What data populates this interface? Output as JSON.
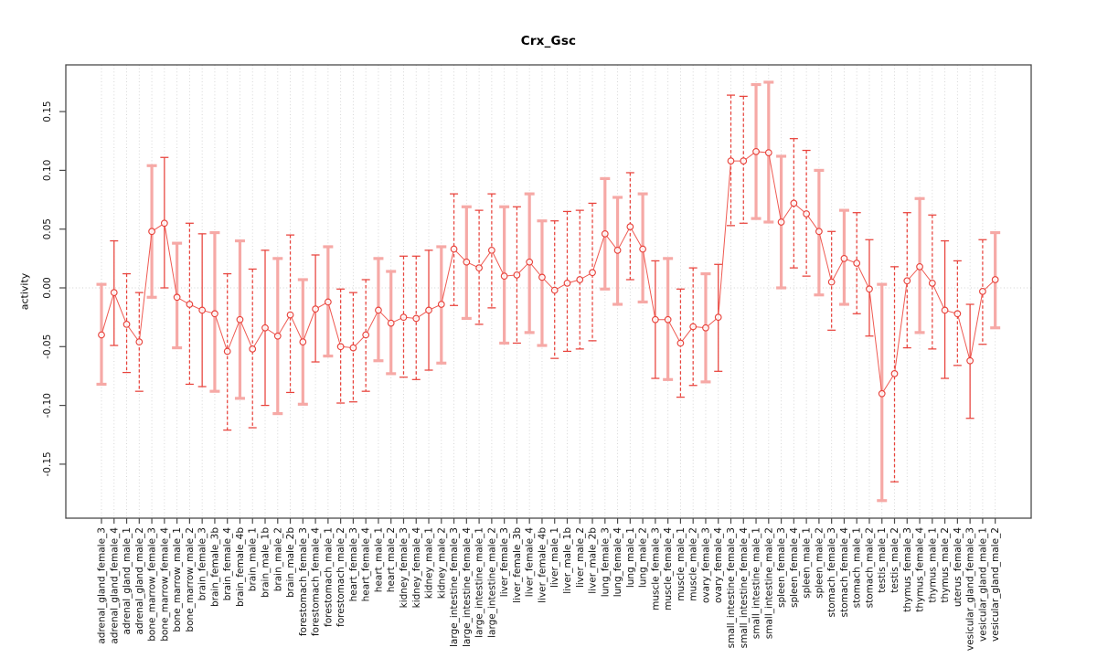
{
  "chart_data": {
    "type": "line",
    "subtype": "points-with-error-bars",
    "title": "Crx_Gsc",
    "xlabel": "",
    "ylabel": "activity",
    "ylim": [
      -0.196,
      0.19
    ],
    "yticks": [
      -0.15,
      -0.1,
      -0.05,
      0.0,
      0.05,
      0.1,
      0.15
    ],
    "ytick_labels": [
      "-0.15",
      "-0.10",
      "-0.05",
      "0.00",
      "0.05",
      "0.10",
      "0.15"
    ],
    "grid": "vertical dotted gridline at every category; dotted horizontal line at y=0; no legend",
    "legend_position": "none",
    "categories": [
      "adrenal_gland_female_3",
      "adrenal_gland_female_4",
      "adrenal_gland_male_1",
      "adrenal_gland_male_2",
      "bone_marrow_female_3",
      "bone_marrow_female_4",
      "bone_marrow_male_1",
      "bone_marrow_male_2",
      "brain_female_3",
      "brain_female_3b",
      "brain_female_4",
      "brain_female_4b",
      "brain_male_1",
      "brain_male_1b",
      "brain_male_2",
      "brain_male_2b",
      "forestomach_female_3",
      "forestomach_female_4",
      "forestomach_male_1",
      "forestomach_male_2",
      "heart_female_3",
      "heart_female_4",
      "heart_male_1",
      "heart_male_2",
      "kidney_female_3",
      "kidney_female_4",
      "kidney_male_1",
      "kidney_male_2",
      "large_intestine_female_3",
      "large_intestine_female_4",
      "large_intestine_male_1",
      "large_intestine_male_2",
      "liver_female_3",
      "liver_female_3b",
      "liver_female_4",
      "liver_female_4b",
      "liver_male_1",
      "liver_male_1b",
      "liver_male_2",
      "liver_male_2b",
      "lung_female_3",
      "lung_female_4",
      "lung_male_1",
      "lung_male_2",
      "muscle_female_3",
      "muscle_female_4",
      "muscle_male_1",
      "muscle_male_2",
      "ovary_female_3",
      "ovary_female_4",
      "small_intestine_female_3",
      "small_intestine_female_4",
      "small_intestine_male_1",
      "small_intestine_male_2",
      "spleen_female_3",
      "spleen_female_4",
      "spleen_male_1",
      "spleen_male_2",
      "stomach_female_3",
      "stomach_female_4",
      "stomach_male_1",
      "stomach_male_2",
      "testis_male_1",
      "testis_male_2",
      "thymus_female_3",
      "thymus_female_4",
      "thymus_male_1",
      "thymus_male_2",
      "uterus_female_4",
      "vesicular_gland_female_3",
      "vesicular_gland_male_1",
      "vesicular_gland_male_2"
    ],
    "series": [
      {
        "name": "activity",
        "values": [
          -0.04,
          -0.004,
          -0.031,
          -0.046,
          0.048,
          0.055,
          -0.008,
          -0.014,
          -0.019,
          -0.022,
          -0.054,
          -0.027,
          -0.052,
          -0.034,
          -0.041,
          -0.023,
          -0.046,
          -0.018,
          -0.012,
          -0.05,
          -0.051,
          -0.04,
          -0.019,
          -0.03,
          -0.025,
          -0.026,
          -0.019,
          -0.014,
          0.033,
          0.022,
          0.017,
          0.032,
          0.01,
          0.011,
          0.022,
          0.009,
          -0.002,
          0.004,
          0.007,
          0.013,
          0.046,
          0.032,
          0.052,
          0.033,
          -0.027,
          -0.027,
          -0.047,
          -0.033,
          -0.034,
          -0.025,
          0.108,
          0.108,
          0.116,
          0.115,
          0.056,
          0.072,
          0.063,
          0.048,
          0.005,
          0.025,
          0.021,
          -0.001,
          -0.09,
          -0.073,
          0.006,
          0.018,
          0.004,
          -0.019,
          -0.022,
          -0.062,
          -0.003,
          0.007
        ],
        "error_low": [
          -0.082,
          -0.049,
          -0.072,
          -0.088,
          -0.008,
          0.0,
          -0.051,
          -0.082,
          -0.084,
          -0.088,
          -0.121,
          -0.094,
          -0.119,
          -0.1,
          -0.107,
          -0.089,
          -0.099,
          -0.063,
          -0.058,
          -0.098,
          -0.097,
          -0.088,
          -0.062,
          -0.073,
          -0.076,
          -0.078,
          -0.07,
          -0.064,
          -0.015,
          -0.026,
          -0.031,
          -0.017,
          -0.047,
          -0.047,
          -0.038,
          -0.049,
          -0.06,
          -0.054,
          -0.052,
          -0.045,
          -0.001,
          -0.014,
          0.007,
          -0.012,
          -0.077,
          -0.078,
          -0.093,
          -0.083,
          -0.08,
          -0.071,
          0.053,
          0.055,
          0.059,
          0.056,
          0.0,
          0.017,
          0.01,
          -0.006,
          -0.036,
          -0.014,
          -0.022,
          -0.041,
          -0.181,
          -0.165,
          -0.051,
          -0.038,
          -0.052,
          -0.077,
          -0.066,
          -0.111,
          -0.048,
          -0.034
        ],
        "error_high": [
          0.003,
          0.04,
          0.012,
          -0.004,
          0.104,
          0.111,
          0.038,
          0.055,
          0.046,
          0.047,
          0.012,
          0.04,
          0.016,
          0.032,
          0.025,
          0.045,
          0.007,
          0.028,
          0.035,
          -0.001,
          -0.004,
          0.007,
          0.025,
          0.014,
          0.027,
          0.027,
          0.032,
          0.035,
          0.08,
          0.069,
          0.066,
          0.08,
          0.069,
          0.069,
          0.08,
          0.057,
          0.057,
          0.065,
          0.066,
          0.072,
          0.093,
          0.077,
          0.098,
          0.08,
          0.023,
          0.025,
          -0.001,
          0.017,
          0.012,
          0.02,
          0.164,
          0.163,
          0.173,
          0.175,
          0.112,
          0.127,
          0.117,
          0.1,
          0.048,
          0.066,
          0.064,
          0.041,
          0.003,
          0.018,
          0.064,
          0.076,
          0.062,
          0.04,
          0.023,
          -0.014,
          0.041,
          0.047
        ],
        "bar_styles": [
          "pink",
          "red",
          "red_dash",
          "red_dash",
          "pink",
          "red",
          "pink",
          "red_dash",
          "red",
          "pink",
          "red_dash",
          "pink",
          "red_dash",
          "red",
          "pink",
          "red_dash",
          "pink",
          "red",
          "pink",
          "red_dash",
          "red_dash",
          "red_dash",
          "pink",
          "pink",
          "red_dash",
          "red_dash",
          "red",
          "pink",
          "red_dash",
          "pink",
          "red_dash",
          "red_dash",
          "pink",
          "red_dash",
          "pink",
          "pink",
          "red_dash",
          "red_dash",
          "red_dash",
          "red_dash",
          "pink",
          "pink",
          "red_dash",
          "pink",
          "red",
          "pink",
          "red_dash",
          "red_dash",
          "pink",
          "red",
          "red_dash",
          "red_dash",
          "pink",
          "pink",
          "pink",
          "red_dash",
          "red_dash",
          "pink",
          "red_dash",
          "pink",
          "red_dash",
          "red",
          "pink",
          "red_dash",
          "red_dash",
          "pink",
          "red_dash",
          "red",
          "red_dash",
          "red",
          "red_dash",
          "pink"
        ]
      }
    ],
    "marker": "open-circle",
    "colors": {
      "point_red": "#e8433c",
      "line_red": "#ef5a52",
      "bar_pink": "#f6a9a6",
      "grid": "#d2d2d2",
      "frame": "#4a4a4a",
      "tick_text": "#111111"
    }
  }
}
